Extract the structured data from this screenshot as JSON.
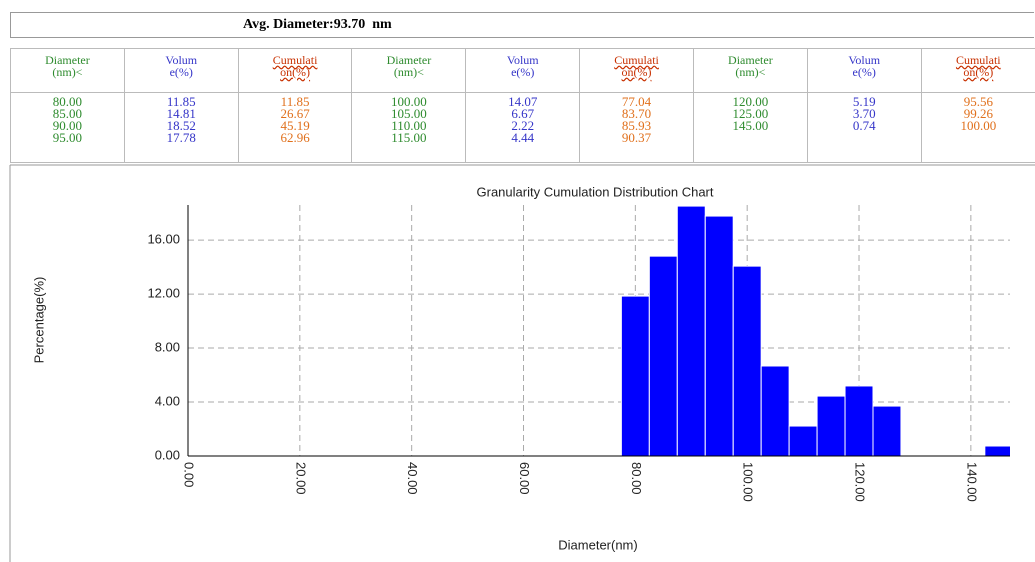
{
  "header": {
    "title": "Avg. Diameter:93.70  nm"
  },
  "table": {
    "columns": [
      [
        "Diameter",
        "(nm)<"
      ],
      [
        "Volum",
        "e(%)"
      ],
      [
        "Cumulati",
        "on(%)"
      ],
      [
        "Diameter",
        "(nm)<"
      ],
      [
        "Volum",
        "e(%)"
      ],
      [
        "Cumulati",
        "on(%)"
      ],
      [
        "Diameter",
        "(nm)<"
      ],
      [
        "Volum",
        "e(%)"
      ],
      [
        "Cumulati",
        "on(%)"
      ]
    ],
    "rows": [
      [
        "80.00",
        "11.85",
        "11.85",
        "100.00",
        "14.07",
        "77.04",
        "120.00",
        "5.19",
        "95.56"
      ],
      [
        "85.00",
        "14.81",
        "26.67",
        "105.00",
        "6.67",
        "83.70",
        "125.00",
        "3.70",
        "99.26"
      ],
      [
        "90.00",
        "18.52",
        "45.19",
        "110.00",
        "2.22",
        "85.93",
        "145.00",
        "0.74",
        "100.00"
      ],
      [
        "95.00",
        "17.78",
        "62.96",
        "115.00",
        "4.44",
        "90.37",
        null,
        null,
        null
      ]
    ]
  },
  "chart_data": {
    "type": "bar",
    "title": "Granularity Cumulation Distribution  Chart",
    "xlabel": "Diameter(nm)",
    "ylabel": "Percentage(%)",
    "x": [
      80,
      85,
      90,
      95,
      100,
      105,
      110,
      115,
      120,
      125,
      145
    ],
    "values": [
      11.85,
      14.81,
      18.52,
      17.78,
      14.07,
      6.67,
      2.22,
      4.44,
      5.19,
      3.7,
      0.74
    ],
    "color": "#0000ff",
    "xlim": [
      0,
      147
    ],
    "ylim": [
      0,
      18.6
    ],
    "xticks": [
      {
        "value": 0,
        "label": "0.00"
      },
      {
        "value": 20,
        "label": "20.00"
      },
      {
        "value": 40,
        "label": "40.00"
      },
      {
        "value": 60,
        "label": "60.00"
      },
      {
        "value": 80,
        "label": "80.00"
      },
      {
        "value": 100,
        "label": "100.00"
      },
      {
        "value": 120,
        "label": "120.00"
      },
      {
        "value": 140,
        "label": "140.00"
      }
    ],
    "yticks": [
      {
        "value": 0,
        "label": "0.00"
      },
      {
        "value": 4,
        "label": "4.00"
      },
      {
        "value": 8,
        "label": "8.00"
      },
      {
        "value": 12,
        "label": "12.00"
      },
      {
        "value": 16,
        "label": "16.00"
      }
    ],
    "grid": true
  }
}
